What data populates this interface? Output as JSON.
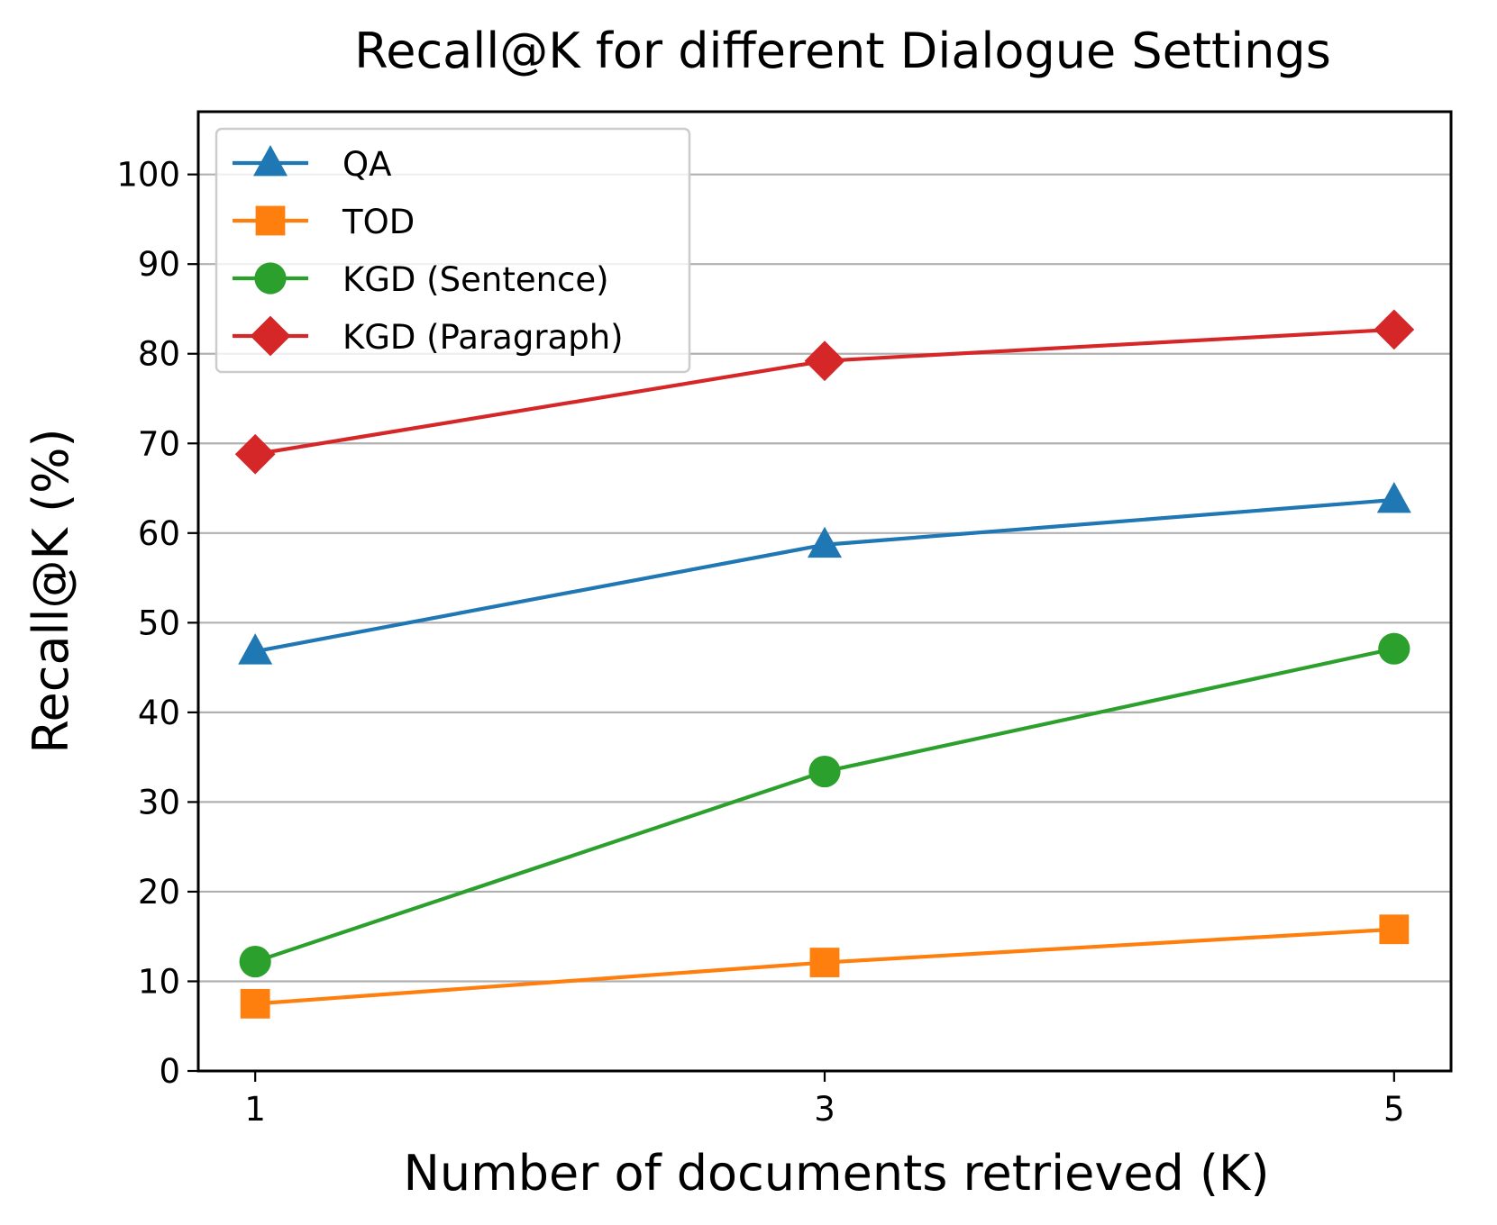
{
  "chart_data": {
    "type": "line",
    "title": "Recall@K for different Dialogue Settings",
    "xlabel": "Number of documents retrieved (K)",
    "ylabel": "Recall@K (%)",
    "x": [
      1,
      3,
      5
    ],
    "xticks": [
      "1",
      "3",
      "5"
    ],
    "xlim": [
      0.8,
      5.2
    ],
    "yticks": [
      "0",
      "10",
      "20",
      "30",
      "40",
      "50",
      "60",
      "70",
      "80",
      "90",
      "100"
    ],
    "ylim": [
      0,
      107
    ],
    "grid": "horizontal",
    "legend_position": "upper-left",
    "series": [
      {
        "name": "QA",
        "color": "#1f77b4",
        "marker": "triangle",
        "values": [
          46.8,
          58.7,
          63.7
        ]
      },
      {
        "name": "TOD",
        "color": "#ff7f0e",
        "marker": "square",
        "values": [
          7.5,
          12.1,
          15.8
        ]
      },
      {
        "name": "KGD (Sentence)",
        "color": "#2ca02c",
        "marker": "circle",
        "values": [
          12.2,
          33.4,
          47.1
        ]
      },
      {
        "name": "KGD (Paragraph)",
        "color": "#d62728",
        "marker": "diamond",
        "values": [
          68.8,
          79.2,
          82.7
        ]
      }
    ]
  }
}
